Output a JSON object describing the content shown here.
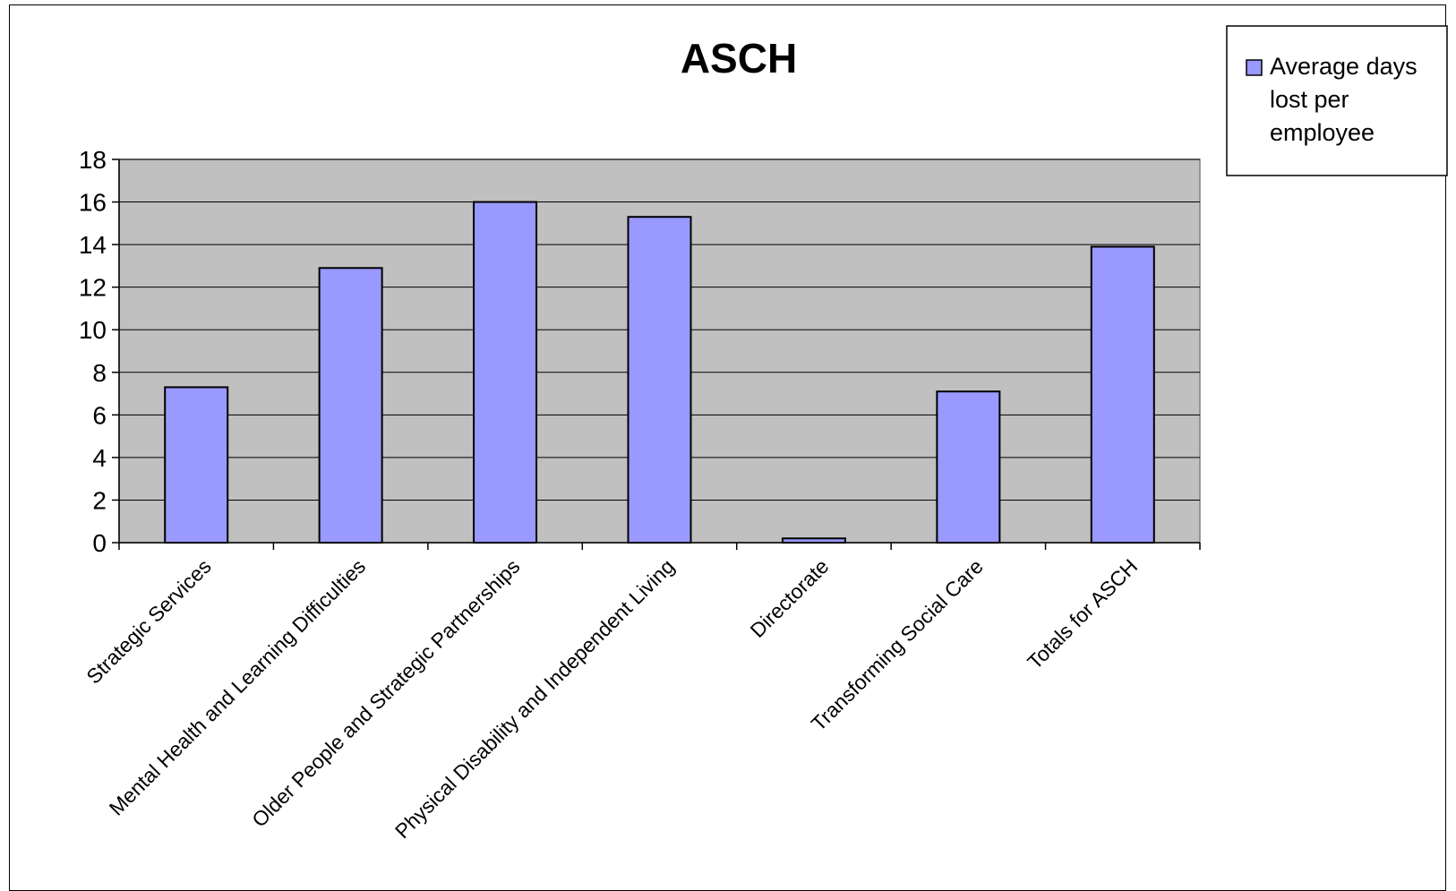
{
  "chart_data": {
    "type": "bar",
    "title": "ASCH",
    "categories": [
      "Strategic Services",
      "Mental Health and Learning Difficulties",
      "Older People and Strategic Partnerships",
      "Physical Disability and Independent Living",
      "Directorate",
      "Transforming Social Care",
      "Totals for ASCH"
    ],
    "series": [
      {
        "name": "Average days lost per employee",
        "values": [
          7.3,
          12.9,
          16.0,
          15.3,
          0.2,
          7.1,
          13.9
        ],
        "color": "#9999ff"
      }
    ],
    "ylim": [
      0,
      18
    ],
    "yticks": [
      "0",
      "2",
      "4",
      "6",
      "8",
      "10",
      "12",
      "14",
      "16",
      "18"
    ],
    "grid": true,
    "plot_background": "#c0c0c0",
    "legend": {
      "position": "top-right",
      "lines": [
        "Average days",
        "lost per",
        "employee"
      ]
    }
  }
}
